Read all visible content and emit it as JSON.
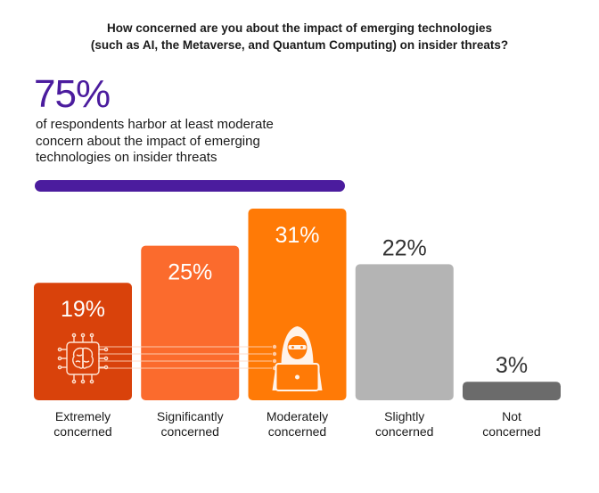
{
  "title_lines": [
    "How concerned are you about the impact of emerging technologies",
    "(such as AI, the Metaverse, and Quantum Computing) on insider threats?"
  ],
  "headline_stat": "75%",
  "headline_text_lines": [
    "of respondents harbor at least moderate",
    "concern about the impact of emerging",
    "technologies on insider threats"
  ],
  "colors": {
    "accent_purple": "#4b1c9e",
    "extremely": "#d9420b",
    "significantly": "#fb6b2d",
    "moderately": "#ff7a06",
    "slightly": "#b4b4b4",
    "not": "#6b6b6b"
  },
  "icons": [
    "brain-chip-icon",
    "hooded-hacker-icon"
  ],
  "chart_data": {
    "type": "bar",
    "title": "How concerned are you about the impact of emerging technologies (such as AI, the Metaverse, and Quantum Computing) on insider threats?",
    "categories": [
      [
        "Extremely",
        "concerned"
      ],
      [
        "Significantly",
        "concerned"
      ],
      [
        "Moderately",
        "concerned"
      ],
      [
        "Slightly",
        "concerned"
      ],
      [
        "Not",
        "concerned"
      ]
    ],
    "values": [
      19,
      25,
      31,
      22,
      3
    ],
    "value_labels": [
      "19%",
      "25%",
      "31%",
      "22%",
      "3%"
    ],
    "value_label_inside": [
      true,
      true,
      true,
      false,
      false
    ],
    "ylim": [
      0,
      31
    ],
    "grid": false,
    "legend": "none"
  }
}
